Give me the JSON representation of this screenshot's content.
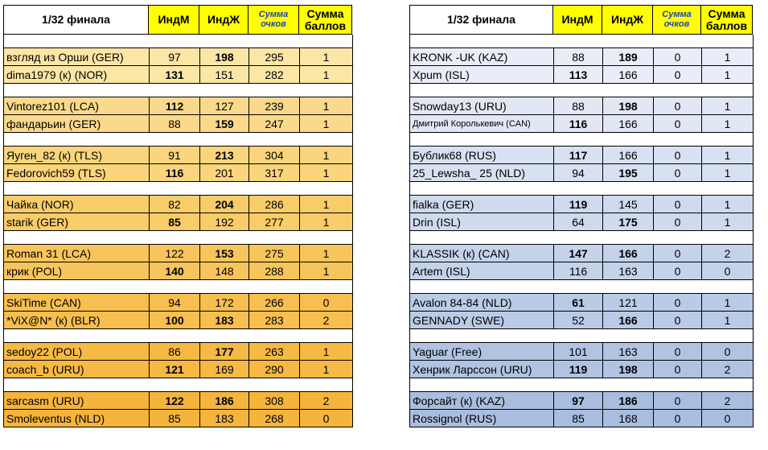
{
  "colors": {
    "left_rows": [
      "#fce6a6",
      "#fbd98c",
      "#fad57c",
      "#f9cc6a",
      "#f8c55c",
      "#f7bf4f",
      "#f6b944",
      "#f5b43b"
    ],
    "right_rows": [
      "#eaedf8",
      "#e2e7f4",
      "#d8e1f1",
      "#cfdaee",
      "#c4d3ea",
      "#bacbe6",
      "#b0c4e2",
      "#a9bedf"
    ],
    "header_accent": "#ffff00",
    "italic_header_text": "#1f3fbf"
  },
  "left": {
    "header": {
      "title": "1/32 финала",
      "ind_m": "ИндМ",
      "ind_zh": "ИндЖ",
      "sum_points": "Сумма очков",
      "sum_score": "Сумма баллов"
    },
    "matches": [
      [
        {
          "name": "взгляд из Орши (GER)",
          "m": "97",
          "zh": "198",
          "sum": "295",
          "score": "1",
          "bold": "zh"
        },
        {
          "name": "dima1979 (к) (NOR)",
          "m": "131",
          "zh": "151",
          "sum": "282",
          "score": "1",
          "bold": "m"
        }
      ],
      [
        {
          "name": "Vintorez101 (LCA)",
          "m": "112",
          "zh": "127",
          "sum": "239",
          "score": "1",
          "bold": "m"
        },
        {
          "name": "фандарьин (GER)",
          "m": "88",
          "zh": "159",
          "sum": "247",
          "score": "1",
          "bold": "zh"
        }
      ],
      [
        {
          "name": "Яуген_82 (к) (TLS)",
          "m": "91",
          "zh": "213",
          "sum": "304",
          "score": "1",
          "bold": "zh"
        },
        {
          "name": "Fedorovich59 (TLS)",
          "m": "116",
          "zh": "201",
          "sum": "317",
          "score": "1",
          "bold": "m"
        }
      ],
      [
        {
          "name": "Чайка (NOR)",
          "m": "82",
          "zh": "204",
          "sum": "286",
          "score": "1",
          "bold": "zh"
        },
        {
          "name": "starik (GER)",
          "m": "85",
          "zh": "192",
          "sum": "277",
          "score": "1",
          "bold": "m"
        }
      ],
      [
        {
          "name": "Roman 31 (LCA)",
          "m": "122",
          "zh": "153",
          "sum": "275",
          "score": "1",
          "bold": "zh"
        },
        {
          "name": "крик (POL)",
          "m": "140",
          "zh": "148",
          "sum": "288",
          "score": "1",
          "bold": "m"
        }
      ],
      [
        {
          "name": "SkiTime (CAN)",
          "m": "94",
          "zh": "172",
          "sum": "266",
          "score": "0",
          "bold": ""
        },
        {
          "name": "*ViX@N* (к) (BLR)",
          "m": "100",
          "zh": "183",
          "sum": "283",
          "score": "2",
          "bold": "mzh"
        }
      ],
      [
        {
          "name": "sedoy22 (POL)",
          "m": "86",
          "zh": "177",
          "sum": "263",
          "score": "1",
          "bold": "zh"
        },
        {
          "name": "coach_b (URU)",
          "m": "121",
          "zh": "169",
          "sum": "290",
          "score": "1",
          "bold": "m"
        }
      ],
      [
        {
          "name": "sarcasm (URU)",
          "m": "122",
          "zh": "186",
          "sum": "308",
          "score": "2",
          "bold": "mzh"
        },
        {
          "name": "Smoleventus (NLD)",
          "m": "85",
          "zh": "183",
          "sum": "268",
          "score": "0",
          "bold": ""
        }
      ]
    ]
  },
  "right": {
    "header": {
      "title": "1/32 финала",
      "ind_m": "ИндМ",
      "ind_zh": "ИндЖ",
      "sum_points": "Сумма очков",
      "sum_score": "Сумма баллов"
    },
    "matches": [
      [
        {
          "name": "KRONK -UK (KAZ)",
          "m": "88",
          "zh": "189",
          "sum": "0",
          "score": "1",
          "bold": "zh"
        },
        {
          "name": "Xpum (ISL)",
          "m": "113",
          "zh": "166",
          "sum": "0",
          "score": "1",
          "bold": "m"
        }
      ],
      [
        {
          "name": "Snowday13 (URU)",
          "m": "88",
          "zh": "198",
          "sum": "0",
          "score": "1",
          "bold": "zh"
        },
        {
          "name": "Дмитрий Королькевич (CAN)",
          "m": "116",
          "zh": "166",
          "sum": "0",
          "score": "1",
          "bold": "m",
          "small": true
        }
      ],
      [
        {
          "name": "Бублик68 (RUS)",
          "m": "117",
          "zh": "166",
          "sum": "0",
          "score": "1",
          "bold": "m"
        },
        {
          "name": "25_Lewsha_ 25 (NLD)",
          "m": "94",
          "zh": "195",
          "sum": "0",
          "score": "1",
          "bold": "zh"
        }
      ],
      [
        {
          "name": "fialka (GER)",
          "m": "119",
          "zh": "145",
          "sum": "0",
          "score": "1",
          "bold": "m"
        },
        {
          "name": "Drin (ISL)",
          "m": "64",
          "zh": "175",
          "sum": "0",
          "score": "1",
          "bold": "zh"
        }
      ],
      [
        {
          "name": "KLASSIK (к) (CAN)",
          "m": "147",
          "zh": "166",
          "sum": "0",
          "score": "2",
          "bold": "mzh"
        },
        {
          "name": "Artem (ISL)",
          "m": "116",
          "zh": "163",
          "sum": "0",
          "score": "0",
          "bold": ""
        }
      ],
      [
        {
          "name": "Avalon 84-84 (NLD)",
          "m": "61",
          "zh": "121",
          "sum": "0",
          "score": "1",
          "bold": "m"
        },
        {
          "name": "GENNADY (SWE)",
          "m": "52",
          "zh": "166",
          "sum": "0",
          "score": "1",
          "bold": "zh"
        }
      ],
      [
        {
          "name": "Yaguar (Free)",
          "m": "101",
          "zh": "163",
          "sum": "0",
          "score": "0",
          "bold": ""
        },
        {
          "name": "Хенрик Ларссон (URU)",
          "m": "119",
          "zh": "198",
          "sum": "0",
          "score": "2",
          "bold": "mzh"
        }
      ],
      [
        {
          "name": "Форсайт (к) (KAZ)",
          "m": "97",
          "zh": "186",
          "sum": "0",
          "score": "2",
          "bold": "mzh"
        },
        {
          "name": "Rossignol (RUS)",
          "m": "85",
          "zh": "168",
          "sum": "0",
          "score": "0",
          "bold": ""
        }
      ]
    ]
  }
}
